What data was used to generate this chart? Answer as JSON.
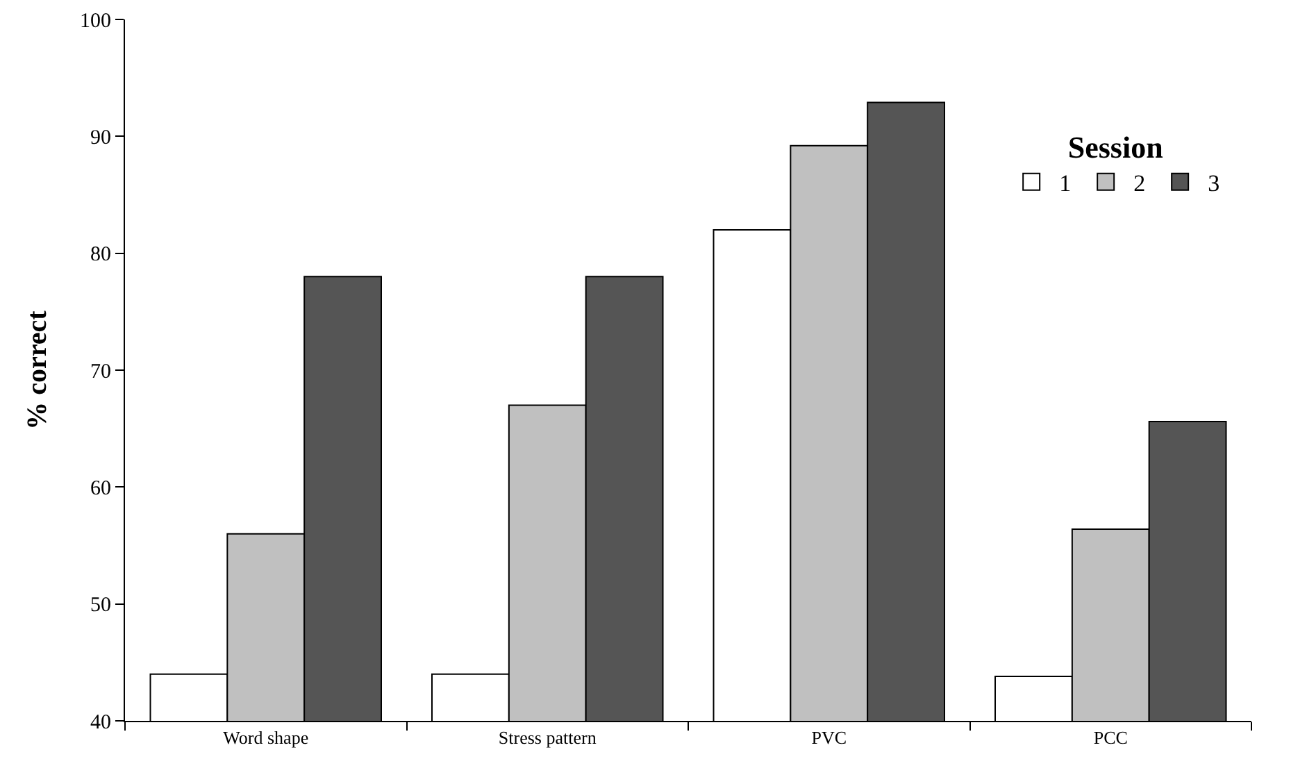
{
  "chart_data": {
    "type": "bar",
    "ylabel": "% correct",
    "legend_title": "Session",
    "categories": [
      "Word shape",
      "Stress pattern",
      "PVC",
      "PCC"
    ],
    "series": [
      {
        "name": "1",
        "color": "#ffffff",
        "values": [
          44,
          44,
          82,
          43.8
        ]
      },
      {
        "name": "2",
        "color": "#c0c0c0",
        "values": [
          56,
          67,
          89.2,
          56.4
        ]
      },
      {
        "name": "3",
        "color": "#555555",
        "values": [
          78,
          78,
          92.9,
          65.6
        ]
      }
    ],
    "ylim": [
      40,
      100
    ],
    "yticks": [
      40,
      50,
      60,
      70,
      80,
      90,
      100
    ],
    "grid": false,
    "legend": "top right"
  }
}
